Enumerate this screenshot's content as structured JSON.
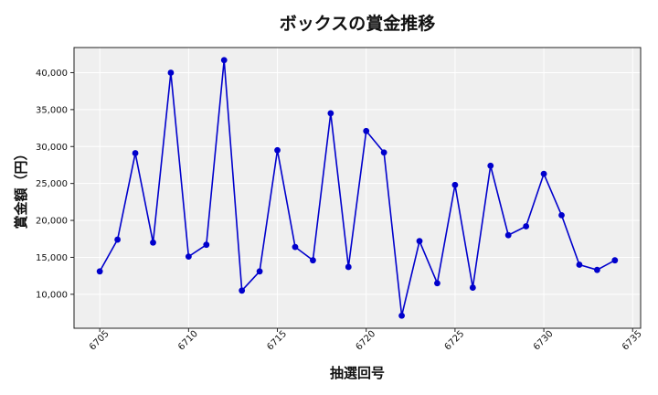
{
  "chart_data": {
    "type": "line",
    "title": "ボックスの賞金推移",
    "xlabel": "抽選回号",
    "ylabel": "賞金額（円）",
    "x": [
      6705,
      6706,
      6707,
      6708,
      6709,
      6710,
      6711,
      6712,
      6713,
      6714,
      6715,
      6716,
      6717,
      6718,
      6719,
      6720,
      6721,
      6722,
      6723,
      6724,
      6725,
      6726,
      6727,
      6728,
      6729,
      6730,
      6731,
      6732,
      6733,
      6734
    ],
    "series": [
      {
        "values": [
          13100,
          17400,
          29100,
          17000,
          40000,
          15100,
          16700,
          41700,
          10500,
          13100,
          29500,
          16400,
          14600,
          34500,
          13700,
          32100,
          29200,
          7100,
          17200,
          11500,
          24800,
          10900,
          27400,
          18000,
          19200,
          26300,
          20700,
          14000,
          13300,
          14600
        ],
        "color": "#0000cc"
      }
    ],
    "xlim": [
      6703.55,
      6735.45
    ],
    "ylim": [
      5400,
      43400
    ],
    "xticks": [
      6705,
      6710,
      6715,
      6720,
      6725,
      6730,
      6735
    ],
    "yticks": [
      10000,
      15000,
      20000,
      25000,
      30000,
      35000,
      40000
    ],
    "ytick_labels": [
      "10,000",
      "15,000",
      "20,000",
      "25,000",
      "30,000",
      "35,000",
      "40,000"
    ],
    "grid": true,
    "legend": "none",
    "plot_background": "#efefef",
    "marker": "circle"
  }
}
